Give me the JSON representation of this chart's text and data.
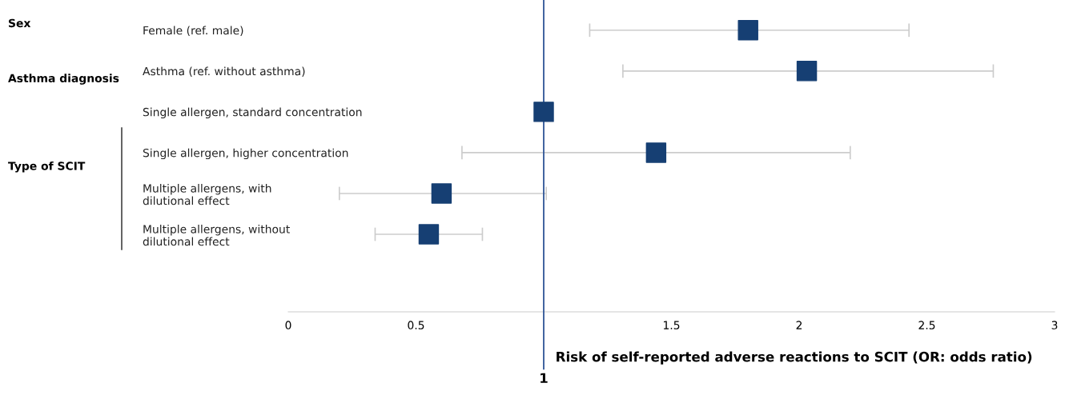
{
  "chart_data": {
    "type": "scatter",
    "orientation": "horizontal",
    "categories": [
      "Female (ref. male)",
      "Asthma (ref. without asthma)",
      "Single allergen, standard concentration",
      "Single allergen, higher concentration",
      "Multiple allergens, with\ndilutional effect",
      "Multiple allergens, without\ndilutional effect"
    ],
    "series": [
      {
        "color": "#163f73",
        "values": [
          1.8,
          2.03,
          1.0,
          1.44,
          0.6,
          0.55
        ],
        "errors": [
          [
            1.18,
            2.43
          ],
          [
            1.31,
            2.76
          ],
          null,
          [
            0.68,
            2.2
          ],
          [
            0.2,
            1.01
          ],
          [
            0.34,
            0.76
          ]
        ]
      }
    ],
    "marker": "square",
    "xlim": [
      0,
      3
    ],
    "xticks": [
      0,
      0.5,
      1.5,
      2,
      2.5,
      3
    ],
    "xlabel": "Risk of self-reported adverse reactions to SCIT (OR: odds ratio)",
    "ref_lines": [
      {
        "axis": "x",
        "value": 1,
        "label": "1",
        "color": "#2f5597"
      }
    ],
    "annotations": [
      "Sex",
      "Asthma diagnosis",
      "Type of SCIT"
    ],
    "grid": false
  }
}
